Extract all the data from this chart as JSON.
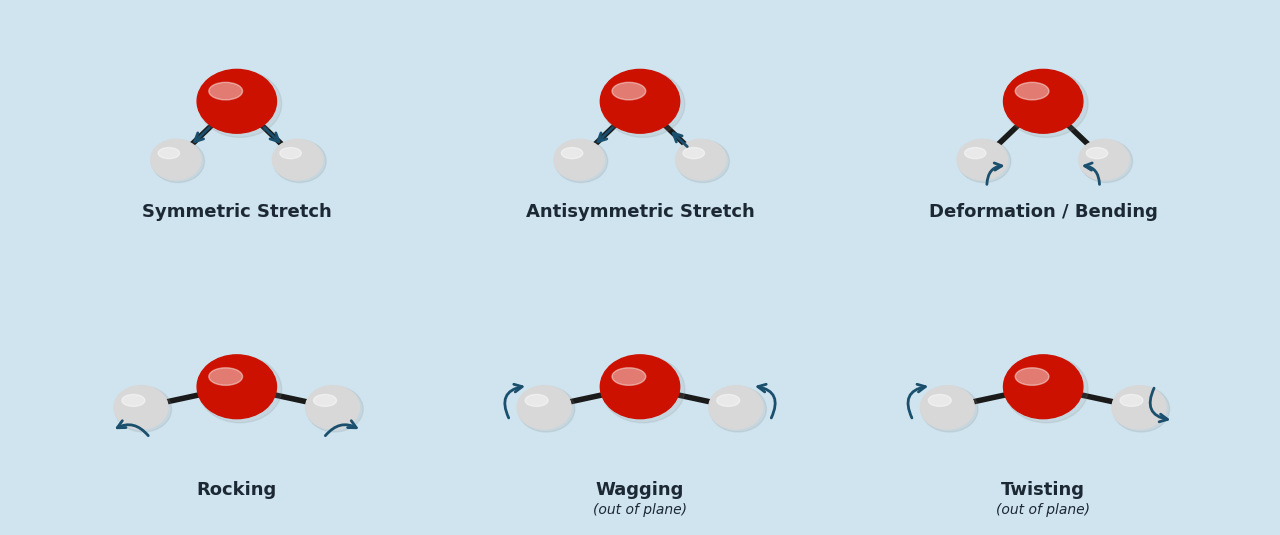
{
  "background_color": "#cfe4ef",
  "oxygen_color_top": "#cc1100",
  "oxygen_color_mid": "#dd3322",
  "oxygen_color_bot": "#ee5544",
  "hydrogen_color_top": "#dddddd",
  "hydrogen_color_mid": "#eeeeee",
  "hydrogen_color_bot": "#ffffff",
  "bond_color": "#1a1a1a",
  "arrow_color": "#1a4f6e",
  "title_fontsize": 13,
  "subtitle_fontsize": 10,
  "panels": [
    {
      "label": "Symmetric Stretch",
      "label2": "",
      "row": 0,
      "col": 0
    },
    {
      "label": "Antisymmetric Stretch",
      "label2": "",
      "row": 0,
      "col": 1
    },
    {
      "label": "Deformation / Bending",
      "label2": "",
      "row": 0,
      "col": 2
    },
    {
      "label": "Rocking",
      "label2": "",
      "row": 1,
      "col": 0
    },
    {
      "label": "Wagging",
      "label2": "(out of plane)",
      "row": 1,
      "col": 1
    },
    {
      "label": "Twisting",
      "label2": "(out of plane)",
      "row": 1,
      "col": 2
    }
  ]
}
